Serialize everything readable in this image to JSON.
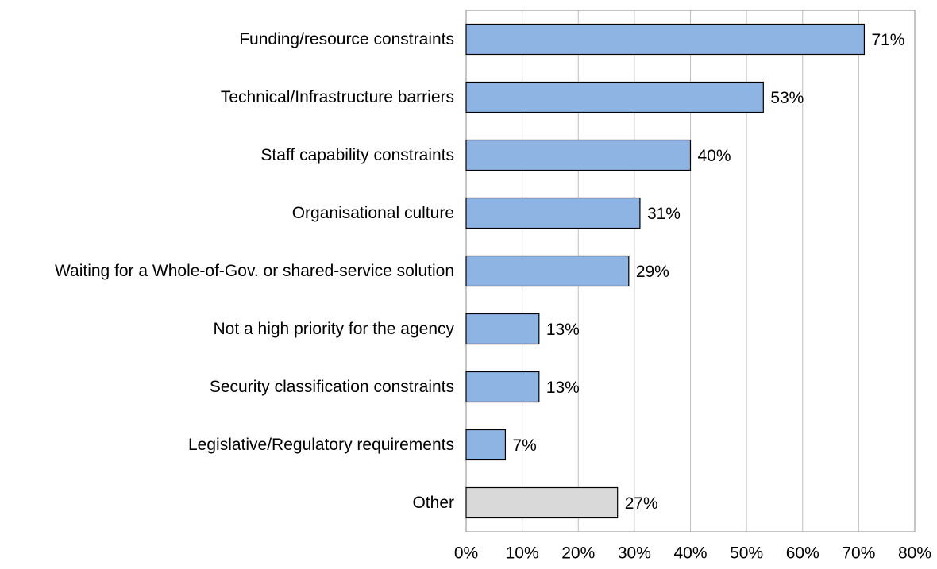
{
  "chart_data": {
    "type": "bar",
    "orientation": "horizontal",
    "categories": [
      "Funding/resource constraints",
      "Technical/Infrastructure barriers",
      "Staff capability constraints",
      "Organisational culture",
      "Waiting for a Whole-of-Gov. or shared-service solution",
      "Not a high priority for the agency",
      "Security classification constraints",
      "Legislative/Regulatory requirements",
      "Other"
    ],
    "values": [
      71,
      53,
      40,
      31,
      29,
      13,
      13,
      7,
      27
    ],
    "value_labels": [
      "71%",
      "53%",
      "40%",
      "31%",
      "29%",
      "13%",
      "13%",
      "7%",
      "27%"
    ],
    "colors": [
      "#8eb4e3",
      "#8eb4e3",
      "#8eb4e3",
      "#8eb4e3",
      "#8eb4e3",
      "#8eb4e3",
      "#8eb4e3",
      "#8eb4e3",
      "#d9d9d9"
    ],
    "xlim": [
      0,
      80
    ],
    "xticks": [
      {
        "value": 0,
        "label": "0%"
      },
      {
        "value": 10,
        "label": "10%"
      },
      {
        "value": 20,
        "label": "20%"
      },
      {
        "value": 30,
        "label": "30%"
      },
      {
        "value": 40,
        "label": "40%"
      },
      {
        "value": 50,
        "label": "50%"
      },
      {
        "value": 60,
        "label": "60%"
      },
      {
        "value": 70,
        "label": "70%"
      },
      {
        "value": 80,
        "label": "80%"
      }
    ],
    "grid": true
  }
}
